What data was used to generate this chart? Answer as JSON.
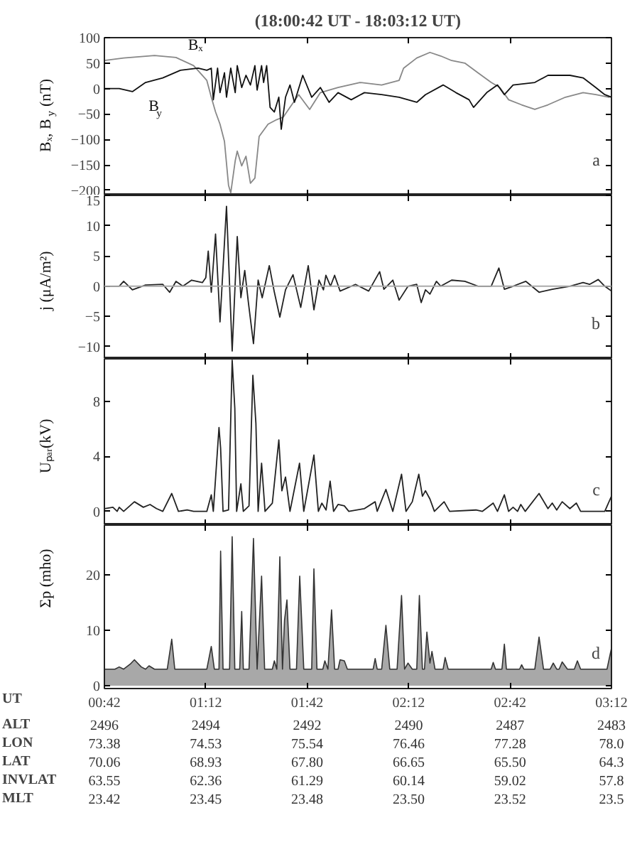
{
  "chart_data": [
    {
      "type": "line",
      "title": "(18:00:42 UT - 18:03:12 UT)",
      "ylabel": "Bₓ, B$_{y}$ (nT)",
      "annotations": [
        "a"
      ],
      "xlim": [
        0.7,
        3.2
      ],
      "xticks": [
        0.7,
        1.2,
        1.7,
        2.2,
        2.7,
        3.2
      ],
      "ylim": [
        -210,
        100
      ],
      "yticks": [
        100,
        50,
        0,
        -50,
        -100,
        -150,
        -200
      ],
      "tick_labels": "y",
      "series": [
        {
          "name": "Bₓ",
          "color": "#888888",
          "x": [
            0.7,
            0.795,
            0.947,
            1.053,
            1.14,
            1.205,
            1.227,
            1.248,
            1.27,
            1.292,
            1.312,
            1.323,
            1.345,
            1.355,
            1.377,
            1.398,
            1.42,
            1.442,
            1.463,
            1.507,
            1.55,
            1.582,
            1.615,
            1.658,
            1.712,
            1.765,
            1.852,
            1.96,
            2.067,
            2.153,
            2.175,
            2.24,
            2.305,
            2.358,
            2.412,
            2.477,
            2.542,
            2.607,
            2.65,
            2.693,
            2.757,
            2.822,
            2.887,
            2.973,
            3.06,
            3.123,
            3.188
          ],
          "values": [
            55,
            60,
            65,
            61,
            45,
            16,
            -17,
            -46,
            -70,
            -104,
            -190,
            -205,
            -142,
            -123,
            -152,
            -133,
            -186,
            -176,
            -94,
            -70,
            -61,
            -56,
            -37,
            -12,
            -41,
            -8,
            2,
            12,
            7,
            16,
            40,
            60,
            71,
            64,
            55,
            50,
            31,
            12,
            2,
            -22,
            -32,
            -41,
            -32,
            -17,
            -8,
            -12,
            -17
          ]
        },
        {
          "name": "B$_{y}$",
          "color": "#111111",
          "x": [
            0.7,
            0.773,
            0.838,
            0.903,
            0.988,
            1.075,
            1.162,
            1.205,
            1.227,
            1.237,
            1.258,
            1.27,
            1.292,
            1.302,
            1.323,
            1.345,
            1.355,
            1.377,
            1.398,
            1.42,
            1.442,
            1.453,
            1.475,
            1.485,
            1.5,
            1.517,
            1.538,
            1.56,
            1.572,
            1.593,
            1.615,
            1.637,
            1.678,
            1.722,
            1.765,
            1.808,
            1.852,
            1.917,
            1.982,
            2.067,
            2.153,
            2.24,
            2.283,
            2.37,
            2.433,
            2.498,
            2.52,
            2.585,
            2.638,
            2.672,
            2.715,
            2.822,
            2.887,
            2.995,
            3.06,
            3.123,
            3.167,
            3.2
          ],
          "values": [
            0,
            0,
            -6,
            12,
            21,
            36,
            40,
            36,
            40,
            -22,
            40,
            -8,
            31,
            -17,
            40,
            -8,
            45,
            2,
            26,
            7,
            45,
            -3,
            45,
            12,
            45,
            -37,
            -46,
            -17,
            -80,
            -17,
            7,
            -27,
            26,
            -17,
            2,
            -27,
            -8,
            -22,
            -8,
            -12,
            -17,
            -27,
            -12,
            7,
            -8,
            -22,
            -37,
            -8,
            7,
            -12,
            7,
            12,
            26,
            26,
            21,
            2,
            -12,
            -17
          ]
        }
      ]
    },
    {
      "type": "line",
      "ylabel": "j (μA/m²)",
      "annotations": [
        "b"
      ],
      "xlim": [
        0.7,
        3.2
      ],
      "xticks": [
        0.7,
        1.2,
        1.7,
        2.2,
        2.7,
        3.2
      ],
      "ylim": [
        -12,
        15
      ],
      "yticks": [
        15,
        10,
        5,
        0,
        -5,
        -10
      ],
      "tick_labels": "y",
      "ref_lines": [
        {
          "axis": "y",
          "value": 0,
          "color": "#aaaaaa"
        }
      ],
      "series": [
        {
          "color": "#222222",
          "x": [
            0.7,
            0.773,
            0.795,
            0.838,
            0.903,
            0.988,
            1.022,
            1.053,
            1.087,
            1.13,
            1.183,
            1.2,
            1.212,
            1.227,
            1.248,
            1.27,
            1.302,
            1.33,
            1.355,
            1.373,
            1.392,
            1.41,
            1.435,
            1.458,
            1.478,
            1.513,
            1.538,
            1.565,
            1.593,
            1.63,
            1.668,
            1.705,
            1.733,
            1.758,
            1.78,
            1.792,
            1.815,
            1.835,
            1.862,
            1.938,
            2.003,
            2.057,
            2.078,
            2.122,
            2.153,
            2.197,
            2.24,
            2.262,
            2.283,
            2.305,
            2.337,
            2.358,
            2.412,
            2.477,
            2.542,
            2.607,
            2.645,
            2.672,
            2.715,
            2.778,
            2.843,
            2.908,
            2.995,
            3.06,
            3.092,
            3.135,
            3.167,
            3.2
          ],
          "values": [
            0,
            0,
            0.8,
            -0.6,
            0.2,
            0.3,
            -1,
            0.8,
            0,
            1,
            0.6,
            1.4,
            5.8,
            -1,
            8.6,
            -5.9,
            13.2,
            -10.7,
            8.2,
            -1.9,
            2.6,
            -2.7,
            -9.5,
            1,
            -1.9,
            3.4,
            -1,
            -5.1,
            -0.6,
            1.9,
            -3.5,
            3.4,
            -3.9,
            1,
            -0.6,
            1.8,
            0,
            1.8,
            -0.8,
            0.3,
            -0.8,
            2.4,
            -0.5,
            1,
            -2.3,
            0,
            0.3,
            -2.7,
            -0.6,
            -1.3,
            0.8,
            0,
            1,
            0.8,
            0,
            0,
            3,
            -0.5,
            0,
            0.8,
            -1,
            -0.5,
            0,
            0.6,
            0.3,
            1.1,
            0,
            -0.8
          ]
        }
      ]
    },
    {
      "type": "line",
      "ylabel": "Uₚₐᵣ(kV)",
      "annotations": [
        "c"
      ],
      "xlim": [
        0.7,
        3.2
      ],
      "xticks": [
        0.7,
        1.2,
        1.7,
        2.2,
        2.7,
        3.2
      ],
      "ylim": [
        -1,
        11.1
      ],
      "yticks": [
        0,
        4,
        8
      ],
      "tick_labels": "y",
      "series": [
        {
          "color": "#222222",
          "x": [
            0.7,
            0.742,
            0.763,
            0.773,
            0.795,
            0.848,
            0.892,
            0.925,
            0.957,
            0.988,
            1.032,
            1.065,
            1.108,
            1.14,
            1.205,
            1.227,
            1.237,
            1.265,
            1.273,
            1.285,
            1.312,
            1.33,
            1.343,
            1.352,
            1.373,
            1.385,
            1.413,
            1.432,
            1.447,
            1.458,
            1.475,
            1.492,
            1.528,
            1.56,
            1.575,
            1.593,
            1.615,
            1.662,
            1.683,
            1.733,
            1.755,
            1.772,
            1.793,
            1.813,
            1.83,
            1.852,
            1.883,
            1.905,
            1.982,
            2.035,
            2.045,
            2.088,
            2.122,
            2.165,
            2.187,
            2.218,
            2.25,
            2.268,
            2.283,
            2.305,
            2.327,
            2.375,
            2.402,
            2.532,
            2.563,
            2.617,
            2.638,
            2.672,
            2.693,
            2.715,
            2.737,
            2.753,
            2.775,
            2.843,
            2.887,
            2.908,
            2.93,
            2.957,
            2.995,
            3.027,
            3.048,
            3.167,
            3.2
          ],
          "values": [
            0.2,
            0.3,
            0,
            0.3,
            0,
            0.7,
            0.3,
            0.5,
            0.2,
            0,
            1.3,
            0,
            0.1,
            0,
            0,
            1.2,
            0,
            6.1,
            4.6,
            0,
            0.1,
            11,
            7.5,
            0,
            2,
            0,
            0.4,
            9.9,
            6.4,
            0,
            3.5,
            0,
            0.6,
            5.2,
            1.5,
            2.5,
            0,
            3.5,
            0,
            4.1,
            0,
            0.6,
            0.1,
            2.2,
            0,
            0.5,
            0.4,
            0,
            0.2,
            0.7,
            0,
            1.6,
            0,
            2.7,
            0,
            0.7,
            2.7,
            1.1,
            1.5,
            0.9,
            0,
            0.7,
            0,
            0.1,
            0,
            0.6,
            0,
            1.2,
            0,
            0.3,
            0,
            0.5,
            0,
            1.3,
            0.2,
            0.6,
            0.1,
            0.7,
            0.2,
            0.6,
            0,
            0,
            1.1
          ]
        }
      ]
    },
    {
      "type": "area",
      "ylabel": "Σp (mho)",
      "annotations": [
        "d",
        "UT",
        "ALT",
        "LON",
        "LAT",
        "INVLAT",
        "MLT",
        "2496",
        "2494",
        "2492",
        "2490",
        "2487",
        "2483",
        "73.38",
        "74.53",
        "75.54",
        "76.46",
        "77.28",
        "78.0",
        "70.06",
        "68.93",
        "67.80",
        "66.65",
        "65.50",
        "64.3",
        "63.55",
        "62.36",
        "61.29",
        "60.14",
        "59.02",
        "57.8",
        "23.42",
        "23.45",
        "23.48",
        "23.50",
        "23.52",
        "23.5"
      ],
      "xlim": [
        0.7,
        3.2
      ],
      "xticks": [
        {
          "value": 0.7,
          "label": "00:42"
        },
        {
          "value": 1.2,
          "label": "01:12"
        },
        {
          "value": 1.7,
          "label": "01:42"
        },
        {
          "value": 2.2,
          "label": "02:12"
        },
        {
          "value": 2.7,
          "label": "02:42"
        },
        {
          "value": 3.2,
          "label": "03:12"
        }
      ],
      "ylim": [
        -0.5,
        29
      ],
      "yticks": [
        0,
        10,
        20
      ],
      "series": [
        {
          "color": "#a8a8a8",
          "x": [
            0.7,
            0.752,
            0.773,
            0.795,
            0.827,
            0.848,
            0.882,
            0.903,
            0.92,
            0.947,
            1.01,
            1.032,
            1.047,
            1.205,
            1.227,
            1.242,
            1.265,
            1.273,
            1.285,
            1.317,
            1.33,
            1.343,
            1.367,
            1.377,
            1.385,
            1.413,
            1.435,
            1.453,
            1.475,
            1.49,
            1.528,
            1.538,
            1.55,
            1.565,
            1.578,
            1.588,
            1.6,
            1.615,
            1.647,
            1.663,
            1.683,
            1.722,
            1.733,
            1.748,
            1.777,
            1.787,
            1.802,
            1.82,
            1.835,
            1.852,
            1.862,
            1.883,
            1.898,
            2.025,
            2.035,
            2.045,
            2.067,
            2.088,
            2.107,
            2.143,
            2.165,
            2.18,
            2.197,
            2.218,
            2.24,
            2.253,
            2.268,
            2.278,
            2.29,
            2.305,
            2.315,
            2.33,
            2.37,
            2.38,
            2.395,
            2.607,
            2.617,
            2.628,
            2.66,
            2.672,
            2.682,
            2.747,
            2.757,
            2.768,
            2.822,
            2.843,
            2.865,
            2.898,
            2.913,
            2.93,
            2.942,
            2.957,
            2.983,
            3.017,
            3.032,
            3.048,
            3.178,
            3.2
          ],
          "values": [
            3,
            3,
            3.4,
            3,
            3.9,
            4.7,
            3.4,
            3,
            3.6,
            3,
            3,
            8.4,
            3,
            3,
            7.1,
            3,
            3,
            24.3,
            3,
            3,
            26.9,
            3,
            3,
            13.4,
            3,
            3,
            26.6,
            3,
            19.8,
            3,
            3,
            4.5,
            3,
            23.3,
            3,
            11.8,
            15.5,
            3,
            3,
            19.8,
            3,
            3,
            21.1,
            3,
            3,
            4.5,
            3,
            13.7,
            3,
            3,
            4.7,
            4.5,
            3,
            3,
            4.9,
            3,
            3,
            10.9,
            3,
            3,
            16.3,
            3,
            4.1,
            3,
            3,
            16.3,
            3,
            3,
            9.7,
            4.1,
            6.2,
            3,
            3,
            5.1,
            3,
            3,
            4.2,
            3,
            3,
            7.5,
            3,
            3,
            3.8,
            3,
            3,
            8.8,
            3,
            3,
            4.1,
            3,
            3,
            4.3,
            3,
            3,
            4.5,
            3,
            3,
            6.8
          ]
        }
      ]
    }
  ]
}
